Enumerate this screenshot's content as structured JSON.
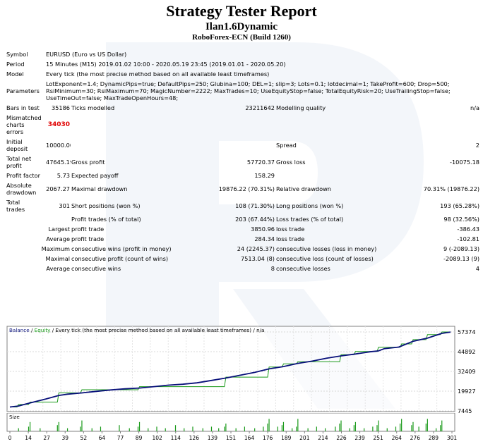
{
  "title": "Strategy Tester Report",
  "expert": "Ilan1.6Dynamic",
  "broker": "RoboForex-ECN (Build 1260)",
  "info": {
    "symbol_label": "Symbol",
    "symbol": "EURUSD (Euro vs US Dollar)",
    "period_label": "Period",
    "period": "15 Minutes (M15) 2019.01.02 10:00 - 2020.05.19 23:45 (2019.01.01 - 2020.05.20)",
    "model_label": "Model",
    "model": "Every tick (the most precise method based on all available least timeframes)",
    "params_label": "Parameters",
    "params_line1": "LotExponent=1.4; DynamicPips=true; DefaultPips=250; Glubina=100; DEL=1; slip=3; Lots=0.1; lotdecimal=1; TakeProfit=600; Drop=500;",
    "params_line2": "RsiMinimum=30; RsiMaximum=70; MagicNumber=2222; MaxTrades=10; UseEquityStop=false; TotalEquityRisk=20; UseTrailingStop=false;",
    "params_line3": "UseTimeOut=false; MaxTradeOpenHours=48;"
  },
  "stats": {
    "bars_label": "Bars in test",
    "bars": "35186",
    "ticks_label": "Ticks modelled",
    "ticks": "23211642",
    "quality_label": "Modelling quality",
    "quality": "n/a",
    "mismatch_label_1": "Mismatched",
    "mismatch_label_2": "charts",
    "mismatch_label_3": "errors",
    "mismatch": "34030",
    "deposit_label_1": "Initial",
    "deposit_label_2": "deposit",
    "deposit": "10000.00",
    "spread_label": "Spread",
    "spread": "2",
    "netprofit_label_1": "Total net",
    "netprofit_label_2": "profit",
    "netprofit": "47645.19",
    "grossprofit_label": "Gross profit",
    "grossprofit": "57720.37",
    "grossloss_label": "Gross loss",
    "grossloss": "-10075.18",
    "pf_label": "Profit factor",
    "pf": "5.73",
    "payoff_label": "Expected payoff",
    "payoff": "158.29",
    "absdd_label_1": "Absolute",
    "absdd_label_2": "drawdown",
    "absdd": "2067.27",
    "maxdd_label": "Maximal drawdown",
    "maxdd": "19876.22 (70.31%)",
    "reldd_label": "Relative drawdown",
    "reldd": "70.31% (19876.22)",
    "trades_label_1": "Total",
    "trades_label_2": "trades",
    "trades": "301",
    "short_label": "Short positions (won %)",
    "short": "108 (71.30%)",
    "long_label": "Long positions (won %)",
    "long": "193 (65.28%)",
    "pt_label": "Profit trades (% of total)",
    "pt": "203 (67.44%)",
    "lt_label": "Loss trades (% of total)",
    "lt": "98 (32.56%)",
    "largest_label": "Largest",
    "largest_pt_label": "profit trade",
    "largest_pt": "3850.96",
    "largest_lt_label": "loss trade",
    "largest_lt": "-386.43",
    "average_label": "Average",
    "avg_pt_label": "profit trade",
    "avg_pt": "284.34",
    "avg_lt_label": "loss trade",
    "avg_lt": "-102.81",
    "maximum_label": "Maximum",
    "max_cw_label": "consecutive wins (profit in money)",
    "max_cw": "24 (2245.37)",
    "max_cl_label": "consecutive losses (loss in money)",
    "max_cl": "9 (-2089.13)",
    "maximal_label": "Maximal",
    "mxl_cp_label": "consecutive profit (count of wins)",
    "mxl_cp": "7513.04 (8)",
    "mxl_cl_label": "consecutive loss (count of losses)",
    "mxl_cl": "-2089.13 (9)",
    "average2_label": "Average",
    "avg_cw_label": "consecutive wins",
    "avg_cw": "8",
    "avg_cl_label": "consecutive losses",
    "avg_cl": "4"
  },
  "chart_data": [
    {
      "type": "line",
      "legend_balance": "Balance",
      "legend_sep": " / ",
      "legend_equity": "Equity",
      "legend_rest": " / Every tick (the most precise method based on all available least timeframes) / n/a",
      "y_ticks": [
        "57374",
        "44892",
        "32409",
        "19927",
        "7445"
      ],
      "ylim": [
        7445,
        57374
      ],
      "x_range": [
        0,
        306
      ],
      "grid": true,
      "series": [
        {
          "name": "Balance",
          "color": "#08107a",
          "x": [
            0,
            6,
            10,
            14,
            25,
            34,
            40,
            50,
            60,
            70,
            80,
            90,
            100,
            110,
            120,
            130,
            140,
            150,
            160,
            170,
            180,
            190,
            200,
            210,
            220,
            230,
            240,
            250,
            256,
            260,
            270,
            272,
            280,
            290,
            300,
            306
          ],
          "y": [
            9900,
            10500,
            11500,
            12500,
            15000,
            17200,
            18000,
            18800,
            19800,
            20700,
            21400,
            21900,
            22800,
            23700,
            24300,
            25200,
            26700,
            28200,
            30000,
            31800,
            34000,
            35500,
            37500,
            38900,
            40800,
            42200,
            43400,
            44800,
            45400,
            46800,
            47800,
            48500,
            51500,
            53500,
            56500,
            57300
          ]
        },
        {
          "name": "Equity",
          "color": "#1a9a1a",
          "x": [
            0,
            5,
            6,
            13,
            14,
            33,
            34,
            49,
            50,
            89,
            90,
            149,
            150,
            179,
            180,
            189,
            190,
            199,
            200,
            229,
            230,
            239,
            240,
            255,
            256,
            271,
            272,
            279,
            280,
            289,
            290,
            299,
            300,
            306
          ],
          "y": [
            9900,
            9900,
            11500,
            11500,
            13000,
            13000,
            18800,
            18800,
            20800,
            20800,
            22800,
            22800,
            28800,
            28800,
            35200,
            35200,
            37200,
            37200,
            38500,
            38500,
            43000,
            43000,
            45000,
            45000,
            47700,
            47700,
            49800,
            49800,
            52500,
            52500,
            55700,
            55700,
            57374,
            57374
          ]
        }
      ]
    },
    {
      "type": "bar",
      "legend": "Size",
      "x_ticks": [
        "0",
        "14",
        "27",
        "39",
        "52",
        "64",
        "77",
        "89",
        "102",
        "114",
        "126",
        "139",
        "151",
        "164",
        "176",
        "189",
        "201",
        "214",
        "226",
        "239",
        "251",
        "264",
        "276",
        "289",
        "301"
      ],
      "x_range": [
        0,
        306
      ],
      "ylim": [
        0,
        10
      ],
      "series": [
        {
          "name": "Size",
          "color": "#1a9a1a",
          "x": [
            6,
            13,
            14,
            21,
            33,
            34,
            40,
            49,
            50,
            57,
            63,
            76,
            83,
            89,
            90,
            96,
            102,
            108,
            115,
            121,
            127,
            134,
            140,
            145,
            149,
            150,
            157,
            163,
            170,
            176,
            179,
            180,
            186,
            189,
            190,
            196,
            199,
            200,
            207,
            213,
            219,
            226,
            229,
            230,
            236,
            239,
            240,
            246,
            252,
            255,
            256,
            262,
            268,
            271,
            272,
            279,
            280,
            284,
            289,
            290,
            296,
            299,
            300
          ],
          "y": [
            2,
            3,
            6,
            2,
            4,
            6,
            2,
            3,
            7,
            2,
            3,
            4,
            2,
            3,
            6,
            2,
            3,
            2,
            4,
            2,
            3,
            2,
            3,
            2,
            3,
            5,
            2,
            3,
            2,
            3,
            5,
            8,
            3,
            4,
            6,
            2,
            3,
            8,
            2,
            3,
            2,
            3,
            5,
            7,
            2,
            4,
            6,
            2,
            3,
            4,
            7,
            2,
            3,
            5,
            8,
            4,
            6,
            3,
            5,
            8,
            2,
            4,
            7
          ]
        }
      ]
    }
  ]
}
